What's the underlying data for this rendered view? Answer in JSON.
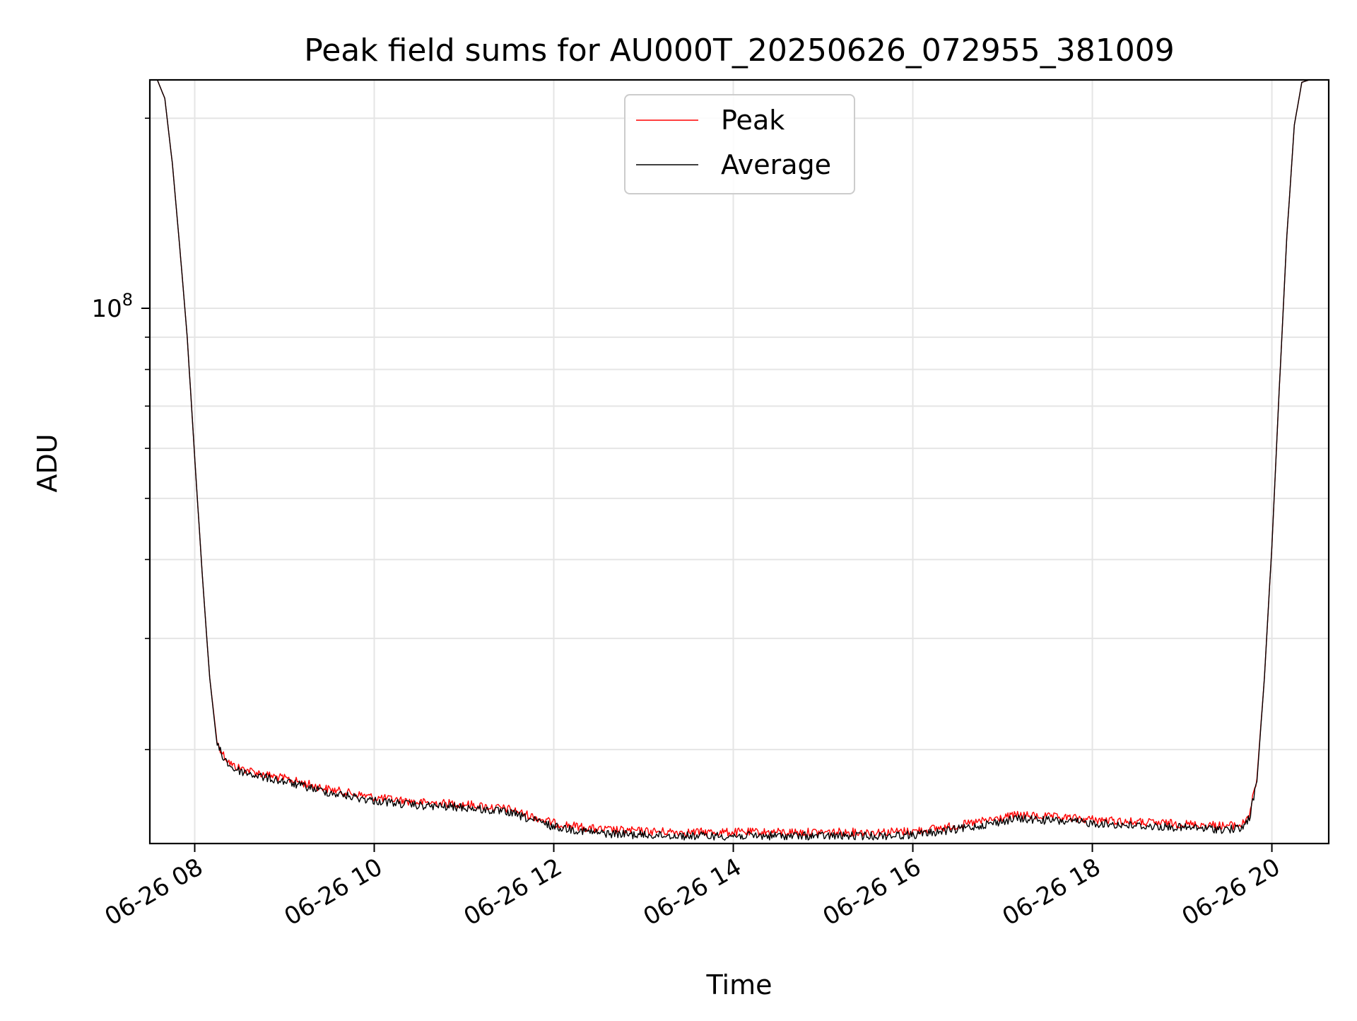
{
  "chart_data": {
    "type": "line",
    "title": "Peak field sums for AU000T_20250626_072955_381009",
    "xlabel": "Time",
    "ylabel": "ADU",
    "x_axis": {
      "type": "datetime",
      "range": [
        "2025-06-26 07:30",
        "2025-06-26 20:38"
      ],
      "ticks": [
        {
          "value": "2025-06-26 08:00",
          "label": "06-26 08"
        },
        {
          "value": "2025-06-26 10:00",
          "label": "06-26 10"
        },
        {
          "value": "2025-06-26 12:00",
          "label": "06-26 12"
        },
        {
          "value": "2025-06-26 14:00",
          "label": "06-26 14"
        },
        {
          "value": "2025-06-26 16:00",
          "label": "06-26 16"
        },
        {
          "value": "2025-06-26 18:00",
          "label": "06-26 18"
        },
        {
          "value": "2025-06-26 20:00",
          "label": "06-26 20"
        }
      ]
    },
    "y_axis": {
      "scale": "log",
      "range": [
        14200000,
        230000000
      ],
      "major_ticks": [
        {
          "value": 100000000,
          "base": "10",
          "exponent": "8"
        }
      ],
      "minor_ticks": [
        20000000,
        30000000,
        40000000,
        50000000,
        60000000,
        70000000,
        80000000,
        90000000,
        200000000
      ]
    },
    "grid": true,
    "legend": {
      "position": "top-center"
    },
    "series": [
      {
        "name": "Peak",
        "color": "#ff0000",
        "x": [
          "2025-06-26 07:30",
          "2025-06-26 07:35",
          "2025-06-26 07:40",
          "2025-06-26 07:45",
          "2025-06-26 07:50",
          "2025-06-26 07:55",
          "2025-06-26 08:00",
          "2025-06-26 08:05",
          "2025-06-26 08:10",
          "2025-06-26 08:15",
          "2025-06-26 08:20",
          "2025-06-26 08:25",
          "2025-06-26 08:30",
          "2025-06-26 08:45",
          "2025-06-26 09:00",
          "2025-06-26 09:30",
          "2025-06-26 10:00",
          "2025-06-26 10:30",
          "2025-06-26 11:00",
          "2025-06-26 11:30",
          "2025-06-26 12:00",
          "2025-06-26 12:30",
          "2025-06-26 13:00",
          "2025-06-26 13:30",
          "2025-06-26 14:00",
          "2025-06-26 14:30",
          "2025-06-26 15:00",
          "2025-06-26 15:30",
          "2025-06-26 16:00",
          "2025-06-26 16:30",
          "2025-06-26 17:00",
          "2025-06-26 17:10",
          "2025-06-26 17:30",
          "2025-06-26 18:00",
          "2025-06-26 18:30",
          "2025-06-26 19:00",
          "2025-06-26 19:30",
          "2025-06-26 19:40",
          "2025-06-26 19:45",
          "2025-06-26 19:50",
          "2025-06-26 19:55",
          "2025-06-26 20:00",
          "2025-06-26 20:05",
          "2025-06-26 20:10",
          "2025-06-26 20:15",
          "2025-06-26 20:20",
          "2025-06-26 20:25"
        ],
        "y": [
          230000000,
          230000000,
          215000000,
          170000000,
          125000000,
          90000000,
          58000000,
          38000000,
          26000000,
          20500000,
          19500000,
          18900000,
          18700000,
          18300000,
          18000000,
          17300000,
          16800000,
          16500000,
          16400000,
          16100000,
          15300000,
          14950000,
          14850000,
          14800000,
          14800000,
          14800000,
          14800000,
          14800000,
          14850000,
          15150000,
          15600000,
          15750000,
          15650000,
          15500000,
          15350000,
          15250000,
          15150000,
          15200000,
          15800000,
          18000000,
          26000000,
          42000000,
          75000000,
          130000000,
          195000000,
          228000000,
          230000000
        ]
      },
      {
        "name": "Average",
        "color": "#000000",
        "x": [
          "2025-06-26 07:30",
          "2025-06-26 07:35",
          "2025-06-26 07:40",
          "2025-06-26 07:45",
          "2025-06-26 07:50",
          "2025-06-26 07:55",
          "2025-06-26 08:00",
          "2025-06-26 08:05",
          "2025-06-26 08:10",
          "2025-06-26 08:15",
          "2025-06-26 08:20",
          "2025-06-26 08:25",
          "2025-06-26 08:30",
          "2025-06-26 08:45",
          "2025-06-26 09:00",
          "2025-06-26 09:30",
          "2025-06-26 10:00",
          "2025-06-26 10:30",
          "2025-06-26 11:00",
          "2025-06-26 11:30",
          "2025-06-26 12:00",
          "2025-06-26 12:30",
          "2025-06-26 13:00",
          "2025-06-26 13:30",
          "2025-06-26 14:00",
          "2025-06-26 14:30",
          "2025-06-26 15:00",
          "2025-06-26 15:30",
          "2025-06-26 16:00",
          "2025-06-26 16:30",
          "2025-06-26 17:00",
          "2025-06-26 17:10",
          "2025-06-26 17:30",
          "2025-06-26 18:00",
          "2025-06-26 18:30",
          "2025-06-26 19:00",
          "2025-06-26 19:30",
          "2025-06-26 19:40",
          "2025-06-26 19:45",
          "2025-06-26 19:50",
          "2025-06-26 19:55",
          "2025-06-26 20:00",
          "2025-06-26 20:05",
          "2025-06-26 20:10",
          "2025-06-26 20:15",
          "2025-06-26 20:20",
          "2025-06-26 20:25"
        ],
        "y": [
          230000000,
          230000000,
          215000000,
          170000000,
          125000000,
          90000000,
          58000000,
          38000000,
          26000000,
          20300000,
          19300000,
          18700000,
          18500000,
          18100000,
          17800000,
          17100000,
          16600000,
          16300000,
          16200000,
          15900000,
          15100000,
          14750000,
          14650000,
          14600000,
          14600000,
          14600000,
          14600000,
          14600000,
          14650000,
          14950000,
          15400000,
          15550000,
          15450000,
          15300000,
          15150000,
          15050000,
          14950000,
          15000000,
          15600000,
          17800000,
          26000000,
          42000000,
          75000000,
          130000000,
          195000000,
          228000000,
          230000000
        ]
      }
    ]
  }
}
